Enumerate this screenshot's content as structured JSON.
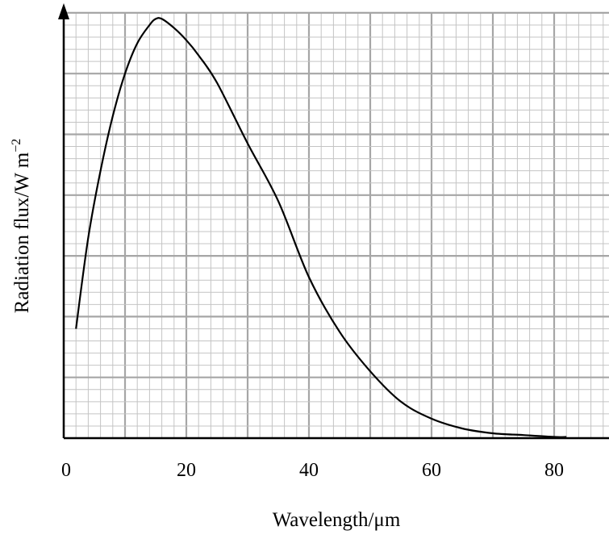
{
  "chart_data": {
    "type": "line",
    "title": "",
    "xlabel": "Wavelength/μm",
    "ylabel": "Radiation flux/W m",
    "ylabel_superscript": "−2",
    "xlim": [
      0,
      90
    ],
    "ylim": [
      0,
      7
    ],
    "x_ticks": [
      "0",
      "20",
      "40",
      "60",
      "80"
    ],
    "grid": true,
    "series": [
      {
        "x": [
          2,
          4,
          6,
          8,
          10,
          12,
          14,
          15,
          16,
          18,
          20,
          22,
          25,
          30,
          35,
          40,
          45,
          50,
          55,
          60,
          65,
          70,
          75,
          80,
          82
        ],
        "y": [
          1.8,
          3.3,
          4.4,
          5.3,
          6.0,
          6.5,
          6.8,
          6.9,
          6.9,
          6.75,
          6.55,
          6.3,
          5.85,
          4.85,
          3.9,
          2.65,
          1.75,
          1.1,
          0.6,
          0.32,
          0.16,
          0.08,
          0.05,
          0.02,
          0.02
        ]
      }
    ]
  }
}
